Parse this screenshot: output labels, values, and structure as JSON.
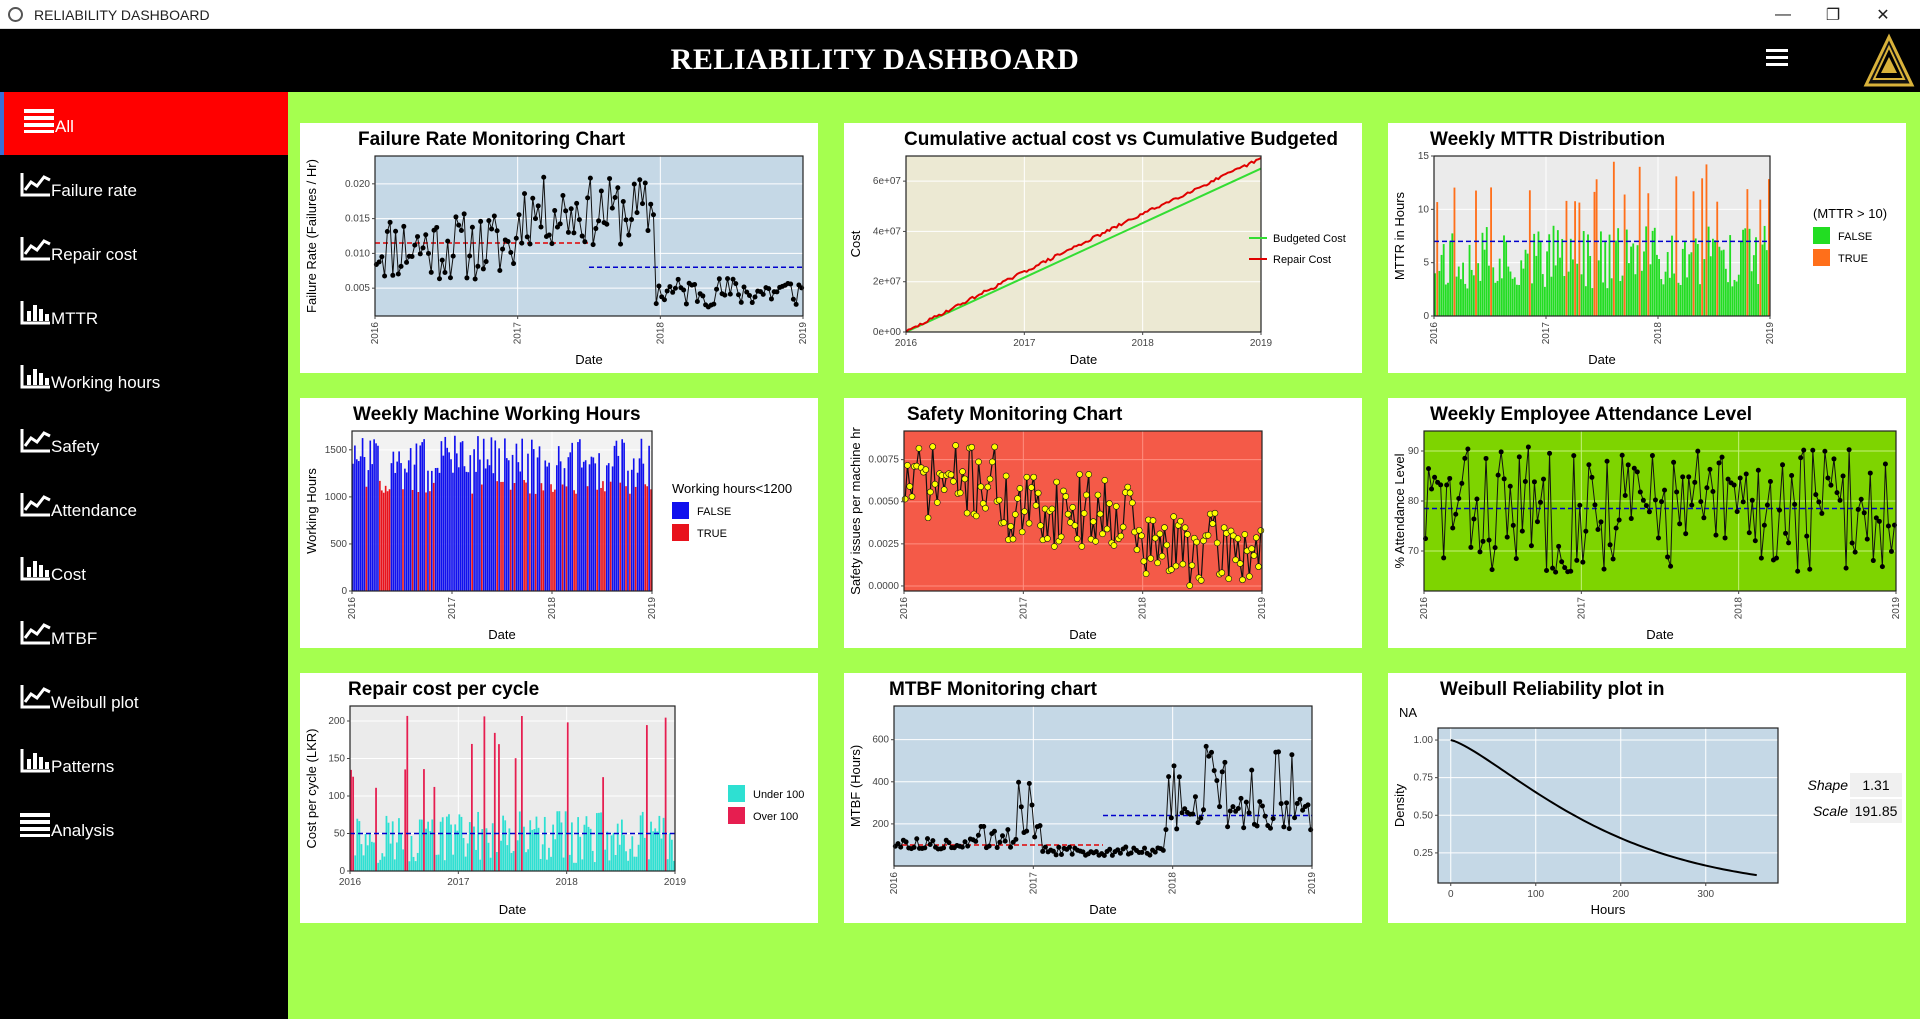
{
  "window": {
    "title": "RELIABILITY DASHBOARD",
    "controls": [
      "minimize",
      "maximize",
      "close"
    ]
  },
  "header": {
    "title": "RELIABILITY DASHBOARD",
    "menu_icon": "hamburger-icon",
    "logo": "triangle-logo"
  },
  "sidebar": {
    "items": [
      {
        "label": "All",
        "icon": "list-icon",
        "active": true
      },
      {
        "label": "Failure rate",
        "icon": "line-chart-icon"
      },
      {
        "label": "Repair cost",
        "icon": "line-chart-icon"
      },
      {
        "label": "MTTR",
        "icon": "bar-chart-icon"
      },
      {
        "label": "Working hours",
        "icon": "bar-chart-icon"
      },
      {
        "label": "Safety",
        "icon": "line-chart-icon"
      },
      {
        "label": "Attendance",
        "icon": "line-chart-icon"
      },
      {
        "label": "Cost",
        "icon": "bar-chart-icon"
      },
      {
        "label": "MTBF",
        "icon": "line-chart-icon"
      },
      {
        "label": "Weibull plot",
        "icon": "line-chart-icon"
      },
      {
        "label": "Patterns",
        "icon": "bar-chart-icon"
      },
      {
        "label": "Analysis",
        "icon": "list-icon"
      }
    ]
  },
  "colors": {
    "accent_bg": "#a5ff4f",
    "header_bg": "#000000",
    "active_nav": "#ff0000"
  },
  "charts": {
    "failure_rate": {
      "title": "Failure Rate Monitoring Chart",
      "xlabel": "Date",
      "ylabel": "Failure Rate (Failures / Hr)",
      "yticks": [
        "0.005",
        "0.010",
        "0.015",
        "0.020"
      ],
      "xticks": [
        "2016",
        "2017",
        "2018",
        "2019"
      ]
    },
    "cum_cost": {
      "title": "Cumulative actual cost vs Cumulative Budgeted",
      "xlabel": "Date",
      "ylabel": "Cost",
      "yticks": [
        "0e+00",
        "2e+07",
        "4e+07",
        "6e+07"
      ],
      "xticks": [
        "2016",
        "2017",
        "2018",
        "2019"
      ],
      "legend": [
        "Budgeted Cost",
        "Repair Cost"
      ]
    },
    "mttr": {
      "title": "Weekly MTTR Distribution",
      "xlabel": "Date",
      "ylabel": "MTTR in Hours",
      "yticks": [
        "0",
        "5",
        "10",
        "15"
      ],
      "xticks": [
        "2016",
        "2017",
        "2018",
        "2019"
      ],
      "legend_title": "(MTTR > 10)",
      "legend": [
        "FALSE",
        "TRUE"
      ]
    },
    "working_hours": {
      "title": "Weekly Machine Working Hours",
      "xlabel": "Date",
      "ylabel": "Working Hours",
      "yticks": [
        "0",
        "500",
        "1000",
        "1500"
      ],
      "xticks": [
        "2016",
        "2017",
        "2018",
        "2019"
      ],
      "legend_title": "Working hours<1200",
      "legend": [
        "FALSE",
        "TRUE"
      ]
    },
    "safety": {
      "title": "Safety Monitoring Chart",
      "xlabel": "Date",
      "ylabel": "Safety issues per machine hr",
      "yticks": [
        "0.0000",
        "0.0025",
        "0.0050",
        "0.0075"
      ],
      "xticks": [
        "2016",
        "2017",
        "2018",
        "2019"
      ]
    },
    "attendance": {
      "title": "Weekly Employee Attendance Level",
      "xlabel": "Date",
      "ylabel": "% Attendance Level",
      "yticks": [
        "70",
        "80",
        "90"
      ],
      "xticks": [
        "2016",
        "2017",
        "2018",
        "2019"
      ]
    },
    "repair_cost": {
      "title": "Repair cost per cycle",
      "xlabel": "Date",
      "ylabel": "Cost per cycle (LKR)",
      "yticks": [
        "0",
        "50",
        "100",
        "150",
        "200"
      ],
      "xticks": [
        "2016",
        "2017",
        "2018",
        "2019"
      ],
      "legend": [
        "Under 100",
        "Over 100"
      ]
    },
    "mtbf": {
      "title": "MTBF Monitoring chart",
      "xlabel": "Date",
      "ylabel": "MTBF (Hours)",
      "yticks": [
        "200",
        "400",
        "600"
      ],
      "xticks": [
        "2016",
        "2017",
        "2018",
        "2019"
      ]
    },
    "weibull": {
      "title": "Weibull Reliability plot in",
      "subtitle": "NA",
      "xlabel": "Hours",
      "ylabel": "Density",
      "yticks": [
        "0.25",
        "0.50",
        "0.75",
        "1.00"
      ],
      "xticks": [
        "0",
        "100",
        "200",
        "300"
      ],
      "params": [
        {
          "key": "Shape",
          "value": "1.31"
        },
        {
          "key": "Scale",
          "value": "191.85"
        }
      ]
    }
  },
  "chart_data": [
    {
      "type": "line",
      "title": "Failure Rate Monitoring Chart",
      "xlabel": "Date",
      "ylabel": "Failure Rate (Failures / Hr)",
      "xlim": [
        2016,
        2019
      ],
      "ylim": [
        0.001,
        0.024
      ],
      "background": "#c5d8e6",
      "reference_lines": [
        {
          "from": 2016,
          "to": 2017.5,
          "y": 0.0115,
          "color": "#e00000"
        },
        {
          "from": 2017.5,
          "to": 2019,
          "y": 0.008,
          "color": "#0000cc"
        }
      ],
      "segments": [
        {
          "from": 2016,
          "to": 2017,
          "mean": 0.011,
          "amp": 0.005
        },
        {
          "from": 2017,
          "to": 2017.97,
          "mean": 0.016,
          "amp": 0.005
        },
        {
          "from": 2017.97,
          "to": 2019,
          "mean": 0.0045,
          "amp": 0.0022
        }
      ]
    },
    {
      "type": "line",
      "title": "Cumulative actual cost vs Cumulative Budgeted",
      "xlabel": "Date",
      "ylabel": "Cost",
      "xlim": [
        2016,
        2019
      ],
      "ylim": [
        0,
        70000000
      ],
      "background": "#ece9d3",
      "series": [
        {
          "name": "Budgeted Cost",
          "color": "#33dd33",
          "x": [
            2016,
            2019
          ],
          "y": [
            0,
            65000000
          ]
        },
        {
          "name": "Repair Cost",
          "color": "#e00000",
          "x": [
            2016,
            2017,
            2018,
            2019
          ],
          "y": [
            0,
            24000000,
            47000000,
            69000000
          ]
        }
      ]
    },
    {
      "type": "bar",
      "title": "Weekly MTTR Distribution",
      "xlabel": "Date",
      "ylabel": "MTTR in Hours",
      "xlim": [
        2016,
        2019
      ],
      "ylim": [
        0,
        15
      ],
      "background": "#ebebeb",
      "reference_line": 7,
      "series": [
        {
          "name": "FALSE",
          "color": "#22dd22"
        },
        {
          "name": "TRUE",
          "color": "#ff6f1a"
        }
      ],
      "threshold": 10
    },
    {
      "type": "bar",
      "title": "Weekly Machine Working Hours",
      "xlabel": "Date",
      "ylabel": "Working Hours",
      "xlim": [
        2016,
        2019
      ],
      "ylim": [
        0,
        1700
      ],
      "background": "#f2f2f2",
      "series": [
        {
          "name": "FALSE",
          "color": "#1010ee"
        },
        {
          "name": "TRUE",
          "color": "#e8121c"
        }
      ],
      "threshold": 1200
    },
    {
      "type": "line",
      "title": "Safety Monitoring Chart",
      "xlabel": "Date",
      "ylabel": "Safety issues per machine hr",
      "xlim": [
        2016,
        2019
      ],
      "ylim": [
        -0.0003,
        0.0092
      ],
      "background": "#f45a48",
      "point_color": "#ffff00"
    },
    {
      "type": "line",
      "title": "Weekly Employee Attendance Level",
      "xlabel": "Date",
      "ylabel": "% Attendance Level",
      "xlim": [
        2016,
        2019
      ],
      "ylim": [
        62,
        94
      ],
      "background": "#7ed400",
      "reference_line": 78.5
    },
    {
      "type": "bar",
      "title": "Repair cost per cycle",
      "xlabel": "Date",
      "ylabel": "Cost per cycle (LKR)",
      "xlim": [
        2016,
        2019
      ],
      "ylim": [
        0,
        220
      ],
      "background": "#ebebeb",
      "reference_line": 50,
      "series": [
        {
          "name": "Under 100",
          "color": "#2ee0d2"
        },
        {
          "name": "Over 100",
          "color": "#e61e50"
        }
      ]
    },
    {
      "type": "line",
      "title": "MTBF Monitoring chart",
      "xlabel": "Date",
      "ylabel": "MTBF (Hours)",
      "xlim": [
        2016,
        2019
      ],
      "ylim": [
        0,
        760
      ],
      "background": "#c5d8e6",
      "reference_lines": [
        {
          "from": 2016,
          "to": 2017.5,
          "y": 100,
          "color": "#e00000"
        },
        {
          "from": 2017.5,
          "to": 2019,
          "y": 240,
          "color": "#0000cc"
        }
      ]
    },
    {
      "type": "line",
      "title": "Weibull Reliability plot in",
      "xlabel": "Hours",
      "ylabel": "Density",
      "xlim": [
        -15,
        385
      ],
      "ylim": [
        0.05,
        1.08
      ],
      "background": "#c5d8e6",
      "shape": 1.31,
      "scale": 191.85,
      "x_range": [
        0,
        360
      ]
    }
  ]
}
